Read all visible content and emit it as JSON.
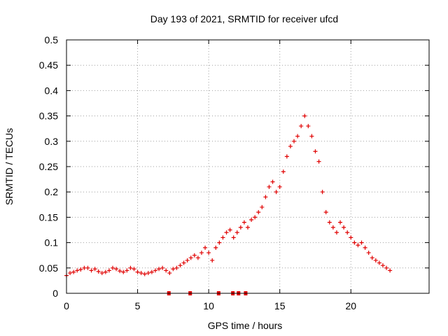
{
  "chart_data": {
    "type": "scatter",
    "title": "Day 193 of 2021, SRMTID for receiver ufcd",
    "xlabel": "GPS time / hours",
    "ylabel": "SRMTID / TECUs",
    "xlim": [
      0,
      25.5
    ],
    "ylim": [
      0,
      0.5
    ],
    "x_ticks": [
      0,
      5,
      10,
      15,
      20
    ],
    "x_tick_labels": [
      "0",
      "5",
      "10",
      "15",
      "20"
    ],
    "y_ticks": [
      0,
      0.05,
      0.1,
      0.15,
      0.2,
      0.25,
      0.3,
      0.35,
      0.4,
      0.45,
      0.5
    ],
    "y_tick_labels": [
      "0",
      "0.05",
      "0.1",
      "0.15",
      "0.2",
      "0.25",
      "0.3",
      "0.35",
      "0.4",
      "0.45",
      "0.5"
    ],
    "grid": true,
    "marker": "plus",
    "color": "#e00000",
    "series": [
      {
        "name": "SRMTID",
        "x": [
          0.0,
          0.25,
          0.5,
          0.75,
          1.0,
          1.25,
          1.5,
          1.75,
          2.0,
          2.25,
          2.5,
          2.75,
          3.0,
          3.25,
          3.5,
          3.75,
          4.0,
          4.25,
          4.5,
          4.75,
          5.0,
          5.25,
          5.5,
          5.75,
          6.0,
          6.25,
          6.5,
          6.75,
          7.0,
          7.25,
          7.5,
          7.75,
          8.0,
          8.25,
          8.5,
          8.75,
          9.0,
          9.25,
          9.5,
          9.75,
          10.0,
          10.25,
          10.5,
          10.75,
          11.0,
          11.25,
          11.5,
          11.75,
          12.0,
          12.25,
          12.5,
          12.75,
          13.0,
          13.25,
          13.5,
          13.75,
          14.0,
          14.25,
          14.5,
          14.75,
          15.0,
          15.25,
          15.5,
          15.75,
          16.0,
          16.25,
          16.5,
          16.75,
          17.0,
          17.25,
          17.5,
          17.75,
          18.0,
          18.25,
          18.5,
          18.75,
          19.0,
          19.25,
          19.5,
          19.75,
          20.0,
          20.25,
          20.5,
          20.75,
          21.0,
          21.25,
          21.5,
          21.75,
          22.0,
          22.25,
          22.5,
          22.75
        ],
        "y": [
          0.035,
          0.04,
          0.042,
          0.045,
          0.047,
          0.05,
          0.05,
          0.045,
          0.048,
          0.043,
          0.04,
          0.042,
          0.045,
          0.05,
          0.048,
          0.044,
          0.042,
          0.045,
          0.05,
          0.048,
          0.042,
          0.04,
          0.038,
          0.04,
          0.042,
          0.045,
          0.048,
          0.05,
          0.045,
          0.04,
          0.048,
          0.05,
          0.055,
          0.06,
          0.065,
          0.07,
          0.075,
          0.07,
          0.08,
          0.09,
          0.08,
          0.065,
          0.09,
          0.1,
          0.11,
          0.12,
          0.125,
          0.11,
          0.12,
          0.13,
          0.14,
          0.13,
          0.145,
          0.15,
          0.16,
          0.17,
          0.19,
          0.21,
          0.22,
          0.2,
          0.21,
          0.24,
          0.27,
          0.29,
          0.3,
          0.31,
          0.33,
          0.35,
          0.33,
          0.31,
          0.28,
          0.26,
          0.2,
          0.16,
          0.14,
          0.13,
          0.12,
          0.14,
          0.13,
          0.12,
          0.11,
          0.1,
          0.095,
          0.1,
          0.09,
          0.08,
          0.07,
          0.065,
          0.06,
          0.055,
          0.05,
          0.045
        ]
      }
    ],
    "gap_markers_x": [
      7.2,
      8.7,
      10.7,
      11.7,
      12.1,
      12.6
    ]
  }
}
